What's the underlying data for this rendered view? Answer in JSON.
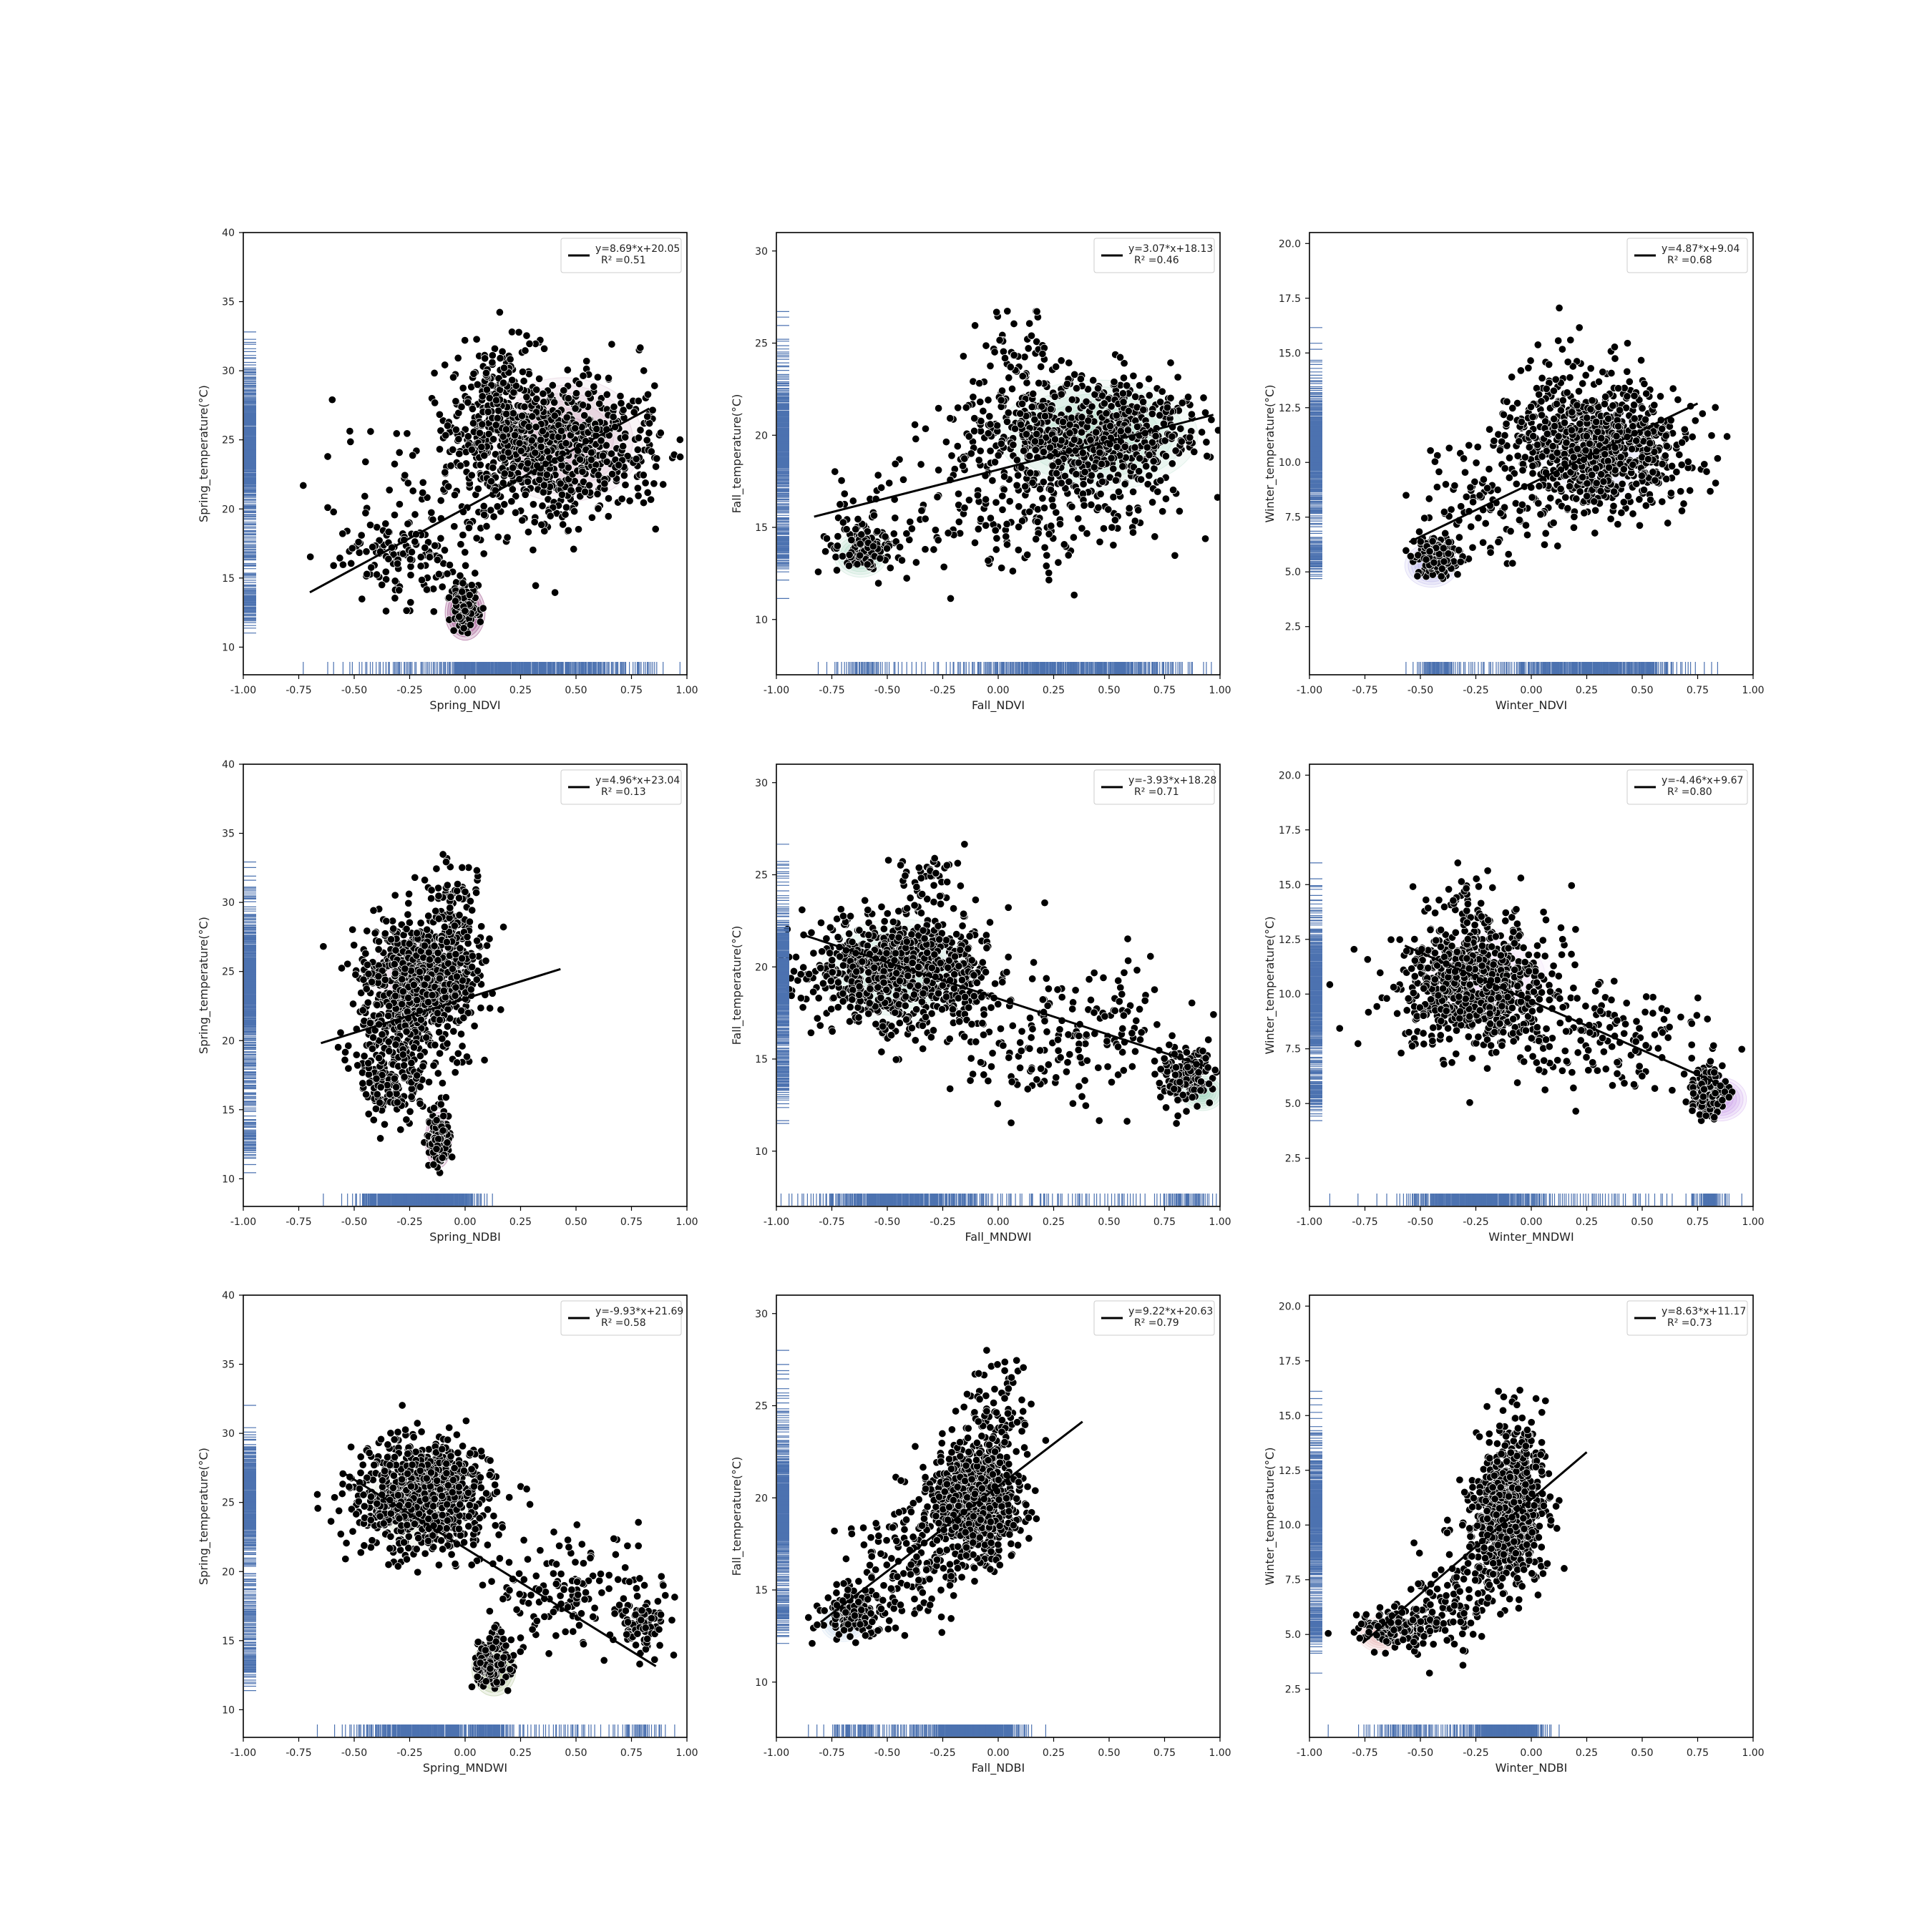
{
  "figure": {
    "background": "#ffffff",
    "colors": {
      "points": "#000000",
      "point_edge": "#ffffff",
      "fit_line": "#000000",
      "rug": "#4c72b0",
      "frame": "#000000"
    }
  },
  "chart_data": [
    {
      "type": "scatter",
      "xlabel": "Spring_NDVI",
      "ylabel": "Spring_temperature(°C)",
      "xlim": [
        -1.0,
        1.0
      ],
      "ylim": [
        8,
        40
      ],
      "xticks": [
        "-1.00",
        "-0.75",
        "-0.50",
        "-0.25",
        "0.00",
        "0.25",
        "0.50",
        "0.75",
        "1.00"
      ],
      "yticks": [
        "10",
        "15",
        "20",
        "25",
        "30",
        "35",
        "40"
      ],
      "legend": {
        "entries": [
          "y=8.69*x+20.05",
          "R² =0.51"
        ],
        "placement": "top-right"
      },
      "fit": {
        "slope": 8.69,
        "intercept": 20.05,
        "x_range": [
          -0.7,
          0.83
        ]
      },
      "kde_color": "#8a2f73",
      "clusters": [
        {
          "cx": 0.45,
          "cy": 24.5,
          "sx": 0.2,
          "sy": 2.5,
          "n": 600
        },
        {
          "cx": 0.15,
          "cy": 26.5,
          "sx": 0.1,
          "sy": 2.5,
          "n": 300
        },
        {
          "cx": 0.0,
          "cy": 13.0,
          "sx": 0.03,
          "sy": 0.8,
          "n": 150
        },
        {
          "cx": -0.3,
          "cy": 16.5,
          "sx": 0.15,
          "sy": 1.5,
          "n": 120
        },
        {
          "cx": -0.05,
          "cy": 21.0,
          "sx": 0.3,
          "sy": 3.5,
          "n": 120
        }
      ],
      "kde": [
        {
          "cx": 0.0,
          "cy": 12.5,
          "rx": 0.09,
          "ry": 2.0,
          "strength": 0.9
        },
        {
          "cx": 0.45,
          "cy": 25.0,
          "rx": 0.35,
          "ry": 4.5,
          "strength": 0.25
        }
      ]
    },
    {
      "type": "scatter",
      "xlabel": "Fall_NDVI",
      "ylabel": "Fall_temperature(°C)",
      "xlim": [
        -1.0,
        1.0
      ],
      "ylim": [
        7,
        31
      ],
      "xticks": [
        "-1.00",
        "-0.75",
        "-0.50",
        "-0.25",
        "0.00",
        "0.25",
        "0.50",
        "0.75",
        "1.00"
      ],
      "yticks": [
        "10",
        "15",
        "20",
        "25",
        "30"
      ],
      "legend": {
        "entries": [
          "y=3.07*x+18.13",
          "R² =0.46"
        ],
        "placement": "top-right"
      },
      "fit": {
        "slope": 3.07,
        "intercept": 18.13,
        "x_range": [
          -0.83,
          0.97
        ]
      },
      "kde_color": "#5fb38a",
      "clusters": [
        {
          "cx": 0.4,
          "cy": 20.0,
          "sx": 0.25,
          "sy": 1.5,
          "n": 700
        },
        {
          "cx": -0.6,
          "cy": 14.0,
          "sx": 0.07,
          "sy": 0.7,
          "n": 120
        },
        {
          "cx": 0.2,
          "cy": 16.5,
          "sx": 0.3,
          "sy": 2.0,
          "n": 200
        },
        {
          "cx": 0.1,
          "cy": 24.0,
          "sx": 0.1,
          "sy": 1.5,
          "n": 60
        },
        {
          "cx": -0.4,
          "cy": 16.0,
          "sx": 0.3,
          "sy": 2.0,
          "n": 60
        }
      ],
      "kde": [
        {
          "cx": 0.45,
          "cy": 20.0,
          "rx": 0.45,
          "ry": 3.0,
          "strength": 0.3
        },
        {
          "cx": -0.62,
          "cy": 13.5,
          "rx": 0.12,
          "ry": 1.2,
          "strength": 0.35
        }
      ]
    },
    {
      "type": "scatter",
      "xlabel": "Winter_NDVI",
      "ylabel": "Winter_temperature(°C)",
      "xlim": [
        -1.0,
        1.0
      ],
      "ylim": [
        0.3,
        20.5
      ],
      "xticks": [
        "-1.00",
        "-0.75",
        "-0.50",
        "-0.25",
        "0.00",
        "0.25",
        "0.50",
        "0.75",
        "1.00"
      ],
      "yticks": [
        "2.5",
        "5.0",
        "7.5",
        "10.0",
        "12.5",
        "15.0",
        "17.5",
        "20.0"
      ],
      "legend": {
        "entries": [
          "y=4.87*x+9.04",
          "R² =0.68"
        ],
        "placement": "top-right"
      },
      "fit": {
        "slope": 4.87,
        "intercept": 9.04,
        "x_range": [
          -0.55,
          0.75
        ]
      },
      "kde_color": "#8079d8",
      "clusters": [
        {
          "cx": 0.3,
          "cy": 10.5,
          "sx": 0.2,
          "sy": 1.3,
          "n": 800
        },
        {
          "cx": -0.42,
          "cy": 5.6,
          "sx": 0.05,
          "sy": 0.45,
          "n": 150
        },
        {
          "cx": -0.2,
          "cy": 8.0,
          "sx": 0.15,
          "sy": 1.5,
          "n": 100
        },
        {
          "cx": 0.2,
          "cy": 13.0,
          "sx": 0.15,
          "sy": 1.5,
          "n": 80
        }
      ],
      "kde": [
        {
          "cx": -0.45,
          "cy": 5.3,
          "rx": 0.12,
          "ry": 1.0,
          "strength": 0.4
        },
        {
          "cx": 0.3,
          "cy": 10.5,
          "rx": 0.3,
          "ry": 2.5,
          "strength": 0.15
        }
      ]
    },
    {
      "type": "scatter",
      "xlabel": "Spring_NDBI",
      "ylabel": "Spring_temperature(°C)",
      "xlim": [
        -1.0,
        1.0
      ],
      "ylim": [
        8,
        40
      ],
      "xticks": [
        "-1.00",
        "-0.75",
        "-0.50",
        "-0.25",
        "0.00",
        "0.25",
        "0.50",
        "0.75",
        "1.00"
      ],
      "yticks": [
        "10",
        "15",
        "20",
        "25",
        "30",
        "35",
        "40"
      ],
      "legend": {
        "entries": [
          "y=4.96*x+23.04",
          "R² =0.13"
        ],
        "placement": "top-right"
      },
      "fit": {
        "slope": 4.96,
        "intercept": 23.04,
        "x_range": [
          -0.65,
          0.43
        ]
      },
      "kde_color": "#8a2f73",
      "clusters": [
        {
          "cx": -0.2,
          "cy": 24.5,
          "sx": 0.12,
          "sy": 2.0,
          "n": 800
        },
        {
          "cx": -0.05,
          "cy": 28.5,
          "sx": 0.06,
          "sy": 2.0,
          "n": 120
        },
        {
          "cx": -0.12,
          "cy": 13.0,
          "sx": 0.025,
          "sy": 1.0,
          "n": 150
        },
        {
          "cx": -0.33,
          "cy": 16.5,
          "sx": 0.07,
          "sy": 1.2,
          "n": 100
        },
        {
          "cx": -0.25,
          "cy": 20.0,
          "sx": 0.12,
          "sy": 2.0,
          "n": 150
        }
      ],
      "kde": [
        {
          "cx": -0.12,
          "cy": 12.8,
          "rx": 0.06,
          "ry": 2.0,
          "strength": 0.7
        },
        {
          "cx": -0.2,
          "cy": 24.5,
          "rx": 0.22,
          "ry": 3.5,
          "strength": 0.2
        }
      ]
    },
    {
      "type": "scatter",
      "xlabel": "Fall_MNDWI",
      "ylabel": "Fall_temperature(°C)",
      "xlim": [
        -1.0,
        1.0
      ],
      "ylim": [
        7,
        31
      ],
      "xticks": [
        "-1.00",
        "-0.75",
        "-0.50",
        "-0.25",
        "0.00",
        "0.25",
        "0.50",
        "0.75",
        "1.00"
      ],
      "yticks": [
        "10",
        "15",
        "20",
        "25",
        "30"
      ],
      "legend": {
        "entries": [
          "y=-3.93*x+18.28",
          "R² =0.71"
        ],
        "placement": "top-right"
      },
      "fit": {
        "slope": -3.93,
        "intercept": 18.28,
        "x_range": [
          -0.87,
          0.93
        ]
      },
      "kde_color": "#5fb38a",
      "clusters": [
        {
          "cx": -0.45,
          "cy": 19.8,
          "sx": 0.2,
          "sy": 1.5,
          "n": 800
        },
        {
          "cx": 0.85,
          "cy": 14.0,
          "sx": 0.07,
          "sy": 0.8,
          "n": 150
        },
        {
          "cx": 0.3,
          "cy": 16.5,
          "sx": 0.3,
          "sy": 1.8,
          "n": 200
        },
        {
          "cx": -0.35,
          "cy": 24.5,
          "sx": 0.08,
          "sy": 1.2,
          "n": 50
        }
      ],
      "kde": [
        {
          "cx": -0.45,
          "cy": 19.8,
          "rx": 0.35,
          "ry": 2.8,
          "strength": 0.25
        },
        {
          "cx": 0.92,
          "cy": 13.2,
          "rx": 0.1,
          "ry": 1.0,
          "strength": 0.35
        }
      ]
    },
    {
      "type": "scatter",
      "xlabel": "Winter_MNDWI",
      "ylabel": "Winter_temperature(°C)",
      "xlim": [
        -1.0,
        1.0
      ],
      "ylim": [
        0.3,
        20.5
      ],
      "xticks": [
        "-1.00",
        "-0.75",
        "-0.50",
        "-0.25",
        "0.00",
        "0.25",
        "0.50",
        "0.75",
        "1.00"
      ],
      "yticks": [
        "2.5",
        "5.0",
        "7.5",
        "10.0",
        "12.5",
        "15.0",
        "17.5",
        "20.0"
      ],
      "legend": {
        "entries": [
          "y=-4.46*x+9.67",
          "R² =0.80"
        ],
        "placement": "top-right"
      },
      "fit": {
        "slope": -4.46,
        "intercept": 9.67,
        "x_range": [
          -0.57,
          0.85
        ]
      },
      "kde_color": "#b06be0",
      "clusters": [
        {
          "cx": -0.25,
          "cy": 10.5,
          "sx": 0.17,
          "sy": 1.3,
          "n": 800
        },
        {
          "cx": 0.8,
          "cy": 5.5,
          "sx": 0.04,
          "sy": 0.5,
          "n": 150
        },
        {
          "cx": 0.35,
          "cy": 8.0,
          "sx": 0.25,
          "sy": 1.3,
          "n": 150
        },
        {
          "cx": -0.3,
          "cy": 13.5,
          "sx": 0.1,
          "sy": 1.2,
          "n": 60
        }
      ],
      "kde": [
        {
          "cx": 0.85,
          "cy": 5.2,
          "rx": 0.12,
          "ry": 1.0,
          "strength": 0.45
        },
        {
          "cx": -0.2,
          "cy": 10.8,
          "rx": 0.3,
          "ry": 2.2,
          "strength": 0.15
        }
      ]
    },
    {
      "type": "scatter",
      "xlabel": "Spring_MNDWI",
      "ylabel": "Spring_temperature(°C)",
      "xlim": [
        -1.0,
        1.0
      ],
      "ylim": [
        8,
        40
      ],
      "xticks": [
        "-1.00",
        "-0.75",
        "-0.50",
        "-0.25",
        "0.00",
        "0.25",
        "0.50",
        "0.75",
        "1.00"
      ],
      "yticks": [
        "10",
        "15",
        "20",
        "25",
        "30",
        "35",
        "40"
      ],
      "legend": {
        "entries": [
          "y=-9.93*x+21.69",
          "R² =0.58"
        ],
        "placement": "top-right"
      },
      "fit": {
        "slope": -9.93,
        "intercept": 21.69,
        "x_range": [
          -0.56,
          0.86
        ]
      },
      "kde_color": "#6b8f3a",
      "clusters": [
        {
          "cx": -0.2,
          "cy": 25.5,
          "sx": 0.15,
          "sy": 2.0,
          "n": 800
        },
        {
          "cx": 0.12,
          "cy": 13.5,
          "sx": 0.04,
          "sy": 1.0,
          "n": 150
        },
        {
          "cx": 0.8,
          "cy": 16.0,
          "sx": 0.05,
          "sy": 1.0,
          "n": 80
        },
        {
          "cx": 0.45,
          "cy": 18.5,
          "sx": 0.2,
          "sy": 2.0,
          "n": 150
        }
      ],
      "kde": [
        {
          "cx": 0.13,
          "cy": 13.0,
          "rx": 0.1,
          "ry": 2.0,
          "strength": 0.5
        },
        {
          "cx": -0.2,
          "cy": 25.0,
          "rx": 0.25,
          "ry": 3.5,
          "strength": 0.2
        }
      ]
    },
    {
      "type": "scatter",
      "xlabel": "Fall_NDBI",
      "ylabel": "Fall_temperature(°C)",
      "xlim": [
        -1.0,
        1.0
      ],
      "ylim": [
        7,
        31
      ],
      "xticks": [
        "-1.00",
        "-0.75",
        "-0.50",
        "-0.25",
        "0.00",
        "0.25",
        "0.50",
        "0.75",
        "1.00"
      ],
      "yticks": [
        "10",
        "15",
        "20",
        "25",
        "30"
      ],
      "legend": {
        "entries": [
          "y=9.22*x+20.63",
          "R² =0.79"
        ],
        "placement": "top-right"
      },
      "fit": {
        "slope": 9.22,
        "intercept": 20.63,
        "x_range": [
          -0.8,
          0.38
        ]
      },
      "kde_color": "#7aa6d8",
      "clusters": [
        {
          "cx": -0.1,
          "cy": 19.8,
          "sx": 0.1,
          "sy": 1.5,
          "n": 800
        },
        {
          "cx": -0.65,
          "cy": 13.8,
          "sx": 0.07,
          "sy": 0.7,
          "n": 150
        },
        {
          "cx": -0.38,
          "cy": 16.5,
          "sx": 0.12,
          "sy": 1.5,
          "n": 150
        },
        {
          "cx": 0.0,
          "cy": 24.5,
          "sx": 0.07,
          "sy": 1.5,
          "n": 80
        }
      ],
      "kde": [
        {
          "cx": -0.7,
          "cy": 13.2,
          "rx": 0.1,
          "ry": 1.0,
          "strength": 0.3
        },
        {
          "cx": -0.1,
          "cy": 20.0,
          "rx": 0.2,
          "ry": 3.0,
          "strength": 0.15
        }
      ]
    },
    {
      "type": "scatter",
      "xlabel": "Winter_NDBI",
      "ylabel": "Winter_temperature(°C)",
      "xlim": [
        -1.0,
        1.0
      ],
      "ylim": [
        0.3,
        20.5
      ],
      "xticks": [
        "-1.00",
        "-0.75",
        "-0.50",
        "-0.25",
        "0.00",
        "0.25",
        "0.50",
        "0.75",
        "1.00"
      ],
      "yticks": [
        "2.5",
        "5.0",
        "7.5",
        "10.0",
        "12.5",
        "15.0",
        "17.5",
        "20.0"
      ],
      "legend": {
        "entries": [
          "y=8.63*x+11.17",
          "R² =0.73"
        ],
        "placement": "top-right"
      },
      "fit": {
        "slope": 8.63,
        "intercept": 11.17,
        "x_range": [
          -0.76,
          0.25
        ]
      },
      "kde_color": "#d96b6b",
      "clusters": [
        {
          "cx": -0.1,
          "cy": 10.5,
          "sx": 0.08,
          "sy": 1.5,
          "n": 800
        },
        {
          "cx": -0.6,
          "cy": 5.3,
          "sx": 0.08,
          "sy": 0.45,
          "n": 150
        },
        {
          "cx": -0.35,
          "cy": 6.5,
          "sx": 0.1,
          "sy": 1.2,
          "n": 120
        },
        {
          "cx": -0.05,
          "cy": 14.0,
          "sx": 0.06,
          "sy": 1.2,
          "n": 60
        }
      ],
      "kde": [
        {
          "cx": -0.68,
          "cy": 5.0,
          "rx": 0.1,
          "ry": 0.8,
          "strength": 0.3
        }
      ]
    }
  ]
}
